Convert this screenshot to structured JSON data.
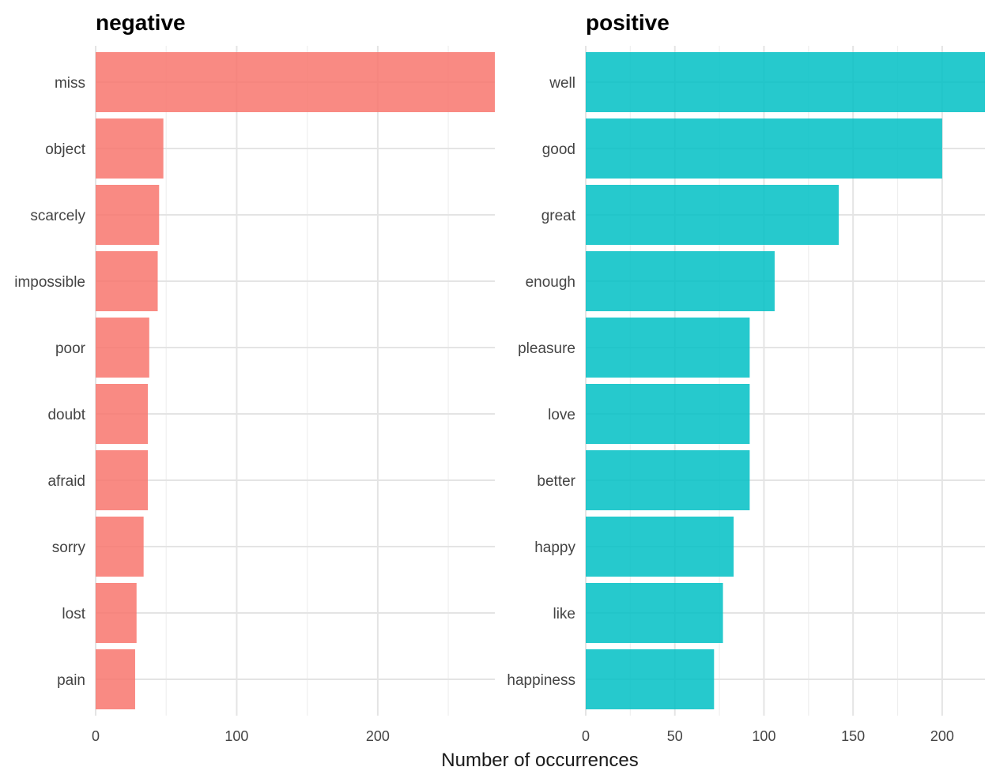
{
  "chart_data": [
    {
      "type": "bar",
      "orientation": "horizontal",
      "title": "negative",
      "categories": [
        "miss",
        "object",
        "scarcely",
        "impossible",
        "poor",
        "doubt",
        "afraid",
        "sorry",
        "lost",
        "pain"
      ],
      "values": [
        283,
        48,
        45,
        44,
        38,
        37,
        37,
        34,
        29,
        28
      ],
      "xlim": [
        0,
        283
      ],
      "major_ticks": [
        0,
        100,
        200
      ],
      "minor_ticks": [
        50,
        150,
        250
      ],
      "color": "#F8766D",
      "grid": true
    },
    {
      "type": "bar",
      "orientation": "horizontal",
      "title": "positive",
      "categories": [
        "well",
        "good",
        "great",
        "enough",
        "pleasure",
        "love",
        "better",
        "happy",
        "like",
        "happiness"
      ],
      "values": [
        224,
        200,
        142,
        106,
        92,
        92,
        92,
        83,
        77,
        72
      ],
      "xlim": [
        0,
        224
      ],
      "major_ticks": [
        0,
        50,
        100,
        150,
        200
      ],
      "minor_ticks": [
        25,
        75,
        125,
        175
      ],
      "color": "#00BFC4",
      "grid": true
    }
  ],
  "xlabel": "Number of occurrences"
}
